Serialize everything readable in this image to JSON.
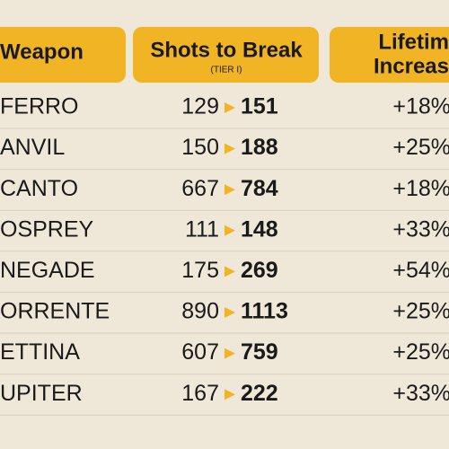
{
  "header": {
    "weapon": "Weapon",
    "shots": "Shots to Break",
    "tier": "(TIER I)",
    "lifetime_1": "Lifetim",
    "lifetime_2": "Increas"
  },
  "table": {
    "rows": [
      [
        "FERRO",
        129,
        151,
        "+18%"
      ],
      [
        "ANVIL",
        150,
        188,
        "+25%"
      ],
      [
        "CANTO",
        667,
        784,
        "+18%"
      ],
      [
        "OSPREY",
        111,
        148,
        "+33%"
      ],
      [
        "NEGADE",
        175,
        269,
        "+54%"
      ],
      [
        "ORRENTE",
        890,
        1113,
        "+25%"
      ],
      [
        "ETTINA",
        607,
        759,
        "+25%"
      ],
      [
        "UPITER",
        167,
        222,
        "+33%"
      ]
    ]
  }
}
